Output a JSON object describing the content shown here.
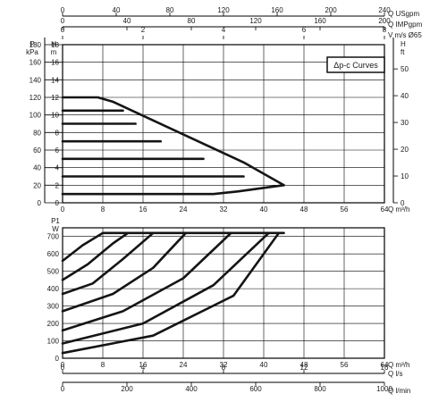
{
  "chart_data": [
    {
      "type": "line",
      "legend": "Δp-c Curves",
      "xlabel_q_m3h": "Q m³/h",
      "xlabel_usgpm": "Q USgpm",
      "xlabel_impgpm": "Q IMPgpm",
      "xlabel_velocity": "V m/s Ø65",
      "ylabel_left_unit": "P kPa",
      "ylabel_left_h": "H m",
      "ylabel_right": "H ft",
      "x_ticks_m3h": [
        "0",
        "8",
        "16",
        "24",
        "32",
        "40",
        "48",
        "56",
        "64"
      ],
      "x_ticks_usgpm": [
        "0",
        "40",
        "80",
        "120",
        "160",
        "200",
        "240"
      ],
      "x_ticks_impgpm": [
        "0",
        "40",
        "80",
        "120",
        "160",
        "200"
      ],
      "x_ticks_velocity": [
        "0",
        "2",
        "4",
        "6",
        "8"
      ],
      "y_ticks_kpa": [
        "0",
        "20",
        "40",
        "60",
        "80",
        "100",
        "120",
        "140",
        "160",
        "180"
      ],
      "y_ticks_m": [
        "0",
        "2",
        "4",
        "6",
        "8",
        "10",
        "12",
        "14",
        "16",
        "18"
      ],
      "y_ticks_ft": [
        "0",
        "10",
        "20",
        "30",
        "40",
        "50"
      ],
      "xlim": [
        0,
        64
      ],
      "ylim": [
        0,
        18
      ],
      "grid": true,
      "series": [
        {
          "x": [
            0,
            7,
            10,
            36,
            44
          ],
          "y": [
            12,
            12,
            11.5,
            4.6,
            2
          ]
        },
        {
          "x": [
            0,
            12
          ],
          "y": [
            10.5,
            10.5
          ]
        },
        {
          "x": [
            0,
            14.5
          ],
          "y": [
            9,
            9
          ]
        },
        {
          "x": [
            0,
            19.5
          ],
          "y": [
            7,
            7
          ]
        },
        {
          "x": [
            0,
            28
          ],
          "y": [
            5,
            5
          ]
        },
        {
          "x": [
            0,
            36
          ],
          "y": [
            3,
            3
          ]
        },
        {
          "x": [
            0,
            6,
            30,
            35,
            40,
            44
          ],
          "y": [
            1,
            1,
            1,
            1.3,
            1.7,
            2
          ]
        }
      ]
    },
    {
      "type": "line",
      "xlabel_q_m3h": "Q m³/h",
      "xlabel_ls": "Q l/s",
      "xlabel_lmin": "Q l/min",
      "ylabel": "P1 W",
      "x_ticks_m3h": [
        "0",
        "8",
        "16",
        "24",
        "32",
        "40",
        "48",
        "56",
        "64"
      ],
      "x_ticks_ls": [
        "0",
        "4",
        "8",
        "12",
        "16"
      ],
      "x_ticks_lmin": [
        "0",
        "200",
        "400",
        "600",
        "800",
        "1000"
      ],
      "y_ticks_w": [
        "0",
        "100",
        "200",
        "300",
        "400",
        "500",
        "600",
        "700"
      ],
      "xlim": [
        0,
        64
      ],
      "ylim": [
        0,
        750
      ],
      "grid": true,
      "series": [
        {
          "x": [
            0,
            4,
            8,
            44
          ],
          "y": [
            560,
            650,
            720,
            720
          ]
        },
        {
          "x": [
            0,
            5,
            10,
            13
          ],
          "y": [
            450,
            540,
            660,
            720
          ]
        },
        {
          "x": [
            0,
            6,
            12,
            18
          ],
          "y": [
            370,
            430,
            570,
            720
          ]
        },
        {
          "x": [
            0,
            10,
            18,
            24.5
          ],
          "y": [
            270,
            370,
            520,
            720
          ]
        },
        {
          "x": [
            0,
            12,
            24,
            33.5
          ],
          "y": [
            160,
            270,
            460,
            720
          ]
        },
        {
          "x": [
            0,
            16,
            30,
            41
          ],
          "y": [
            85,
            200,
            420,
            720
          ]
        },
        {
          "x": [
            0,
            18,
            34,
            43
          ],
          "y": [
            30,
            130,
            360,
            720
          ]
        }
      ]
    }
  ]
}
